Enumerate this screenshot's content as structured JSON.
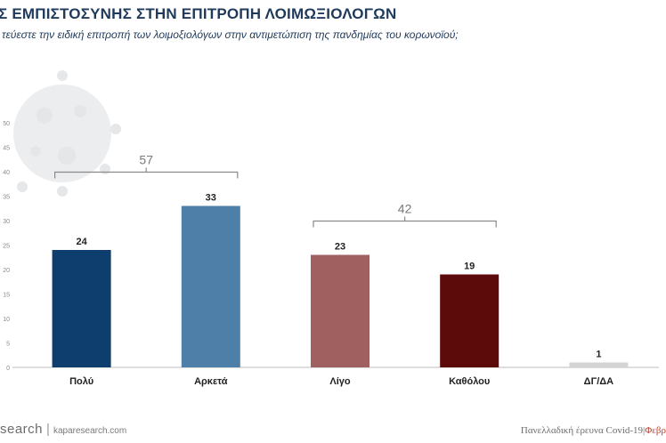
{
  "header": {
    "title": "Σ ΕΜΠΙΣΤΟΣΥΝΗΣ ΣΤΗΝ ΕΠΙΤΡΟΠΗ ΛΟΙΜΩΞΙΟΛΟΓΩΝ",
    "subtitle": "τεύεστε την ειδική επιτροπή των λοιμοξιολόγων στην αντιμετώπιση της πανδημίας του κορωνοϊού;"
  },
  "chart_data": {
    "type": "bar",
    "categories": [
      "Πολύ",
      "Αρκετά",
      "Λίγο",
      "Καθόλου",
      "ΔΓ/ΔΑ"
    ],
    "values": [
      24,
      33,
      23,
      19,
      1
    ],
    "bar_colors": [
      "#0e3e6e",
      "#4d7fa8",
      "#a06060",
      "#5c0a0a",
      "#d4d4d4"
    ],
    "ylim": [
      0,
      50
    ],
    "yticks": [
      0,
      5,
      10,
      15,
      20,
      25,
      30,
      35,
      40,
      45,
      50
    ],
    "grid": false,
    "brackets": [
      {
        "label": "57",
        "from_index": 0,
        "to_index": 1
      },
      {
        "label": "42",
        "from_index": 2,
        "to_index": 3
      }
    ]
  },
  "footer": {
    "brand": "search",
    "separator": "|",
    "url": "kaparesearch.com",
    "survey": "Πανελλαδική έρευνα Covid-19",
    "month": "Φεβρ"
  }
}
